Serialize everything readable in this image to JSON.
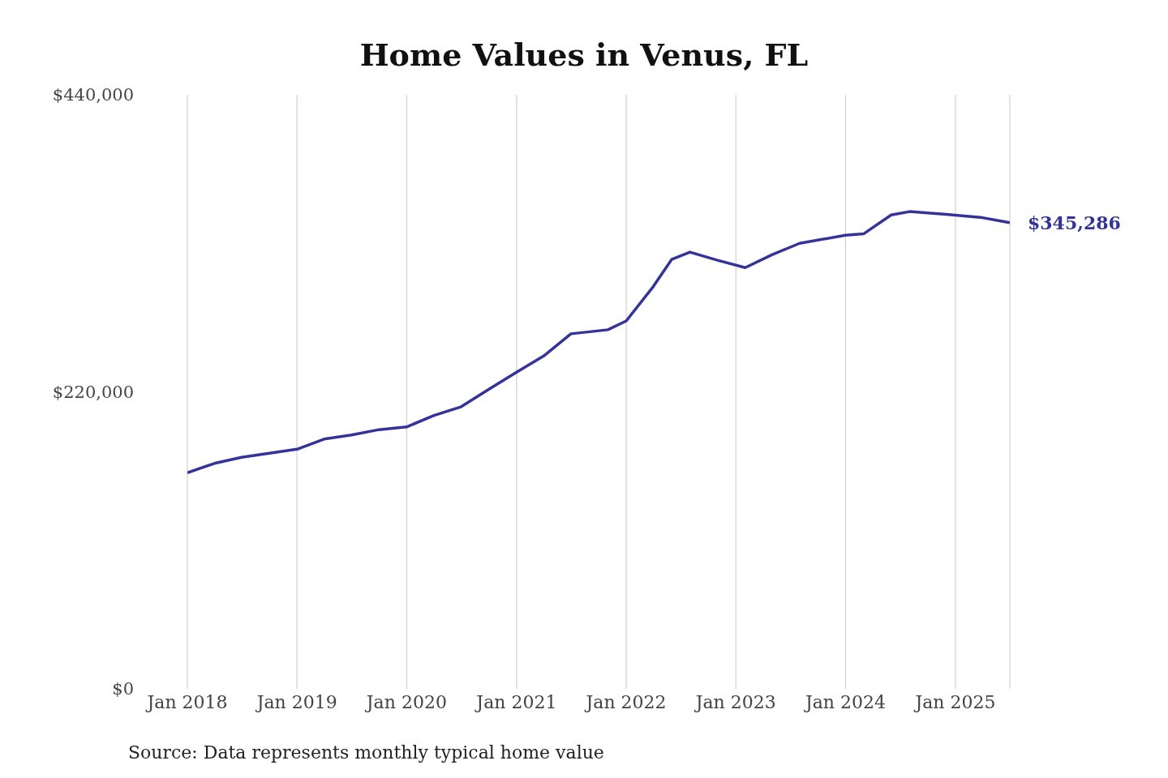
{
  "chart_data": {
    "type": "line",
    "title": "Home Values in Venus, FL",
    "x": [
      "2018-01",
      "2018-04",
      "2018-07",
      "2018-10",
      "2019-01",
      "2019-04",
      "2019-07",
      "2019-10",
      "2020-01",
      "2020-04",
      "2020-07",
      "2020-10",
      "2021-01",
      "2021-04",
      "2021-07",
      "2021-09",
      "2021-11",
      "2022-01",
      "2022-04",
      "2022-06",
      "2022-08",
      "2022-11",
      "2023-02",
      "2023-05",
      "2023-08",
      "2024-01",
      "2024-03",
      "2024-06",
      "2024-08",
      "2024-12",
      "2025-04",
      "2025-06",
      "2025-07"
    ],
    "series": [
      {
        "color": "#33339a",
        "values": [
          160000,
          167000,
          171500,
          174500,
          177500,
          185000,
          188000,
          192000,
          194000,
          202500,
          209000,
          222000,
          234500,
          246500,
          263000,
          264500,
          266000,
          272500,
          298000,
          318000,
          323500,
          317500,
          312000,
          321500,
          330000,
          336000,
          337000,
          351000,
          353500,
          351500,
          349000,
          346500,
          345286
        ]
      }
    ],
    "xlim": [
      "2018-01",
      "2025-07"
    ],
    "xticks": [
      {
        "value": "2018-01",
        "label": "Jan 2018"
      },
      {
        "value": "2019-01",
        "label": "Jan 2019"
      },
      {
        "value": "2020-01",
        "label": "Jan 2020"
      },
      {
        "value": "2021-01",
        "label": "Jan 2021"
      },
      {
        "value": "2022-01",
        "label": "Jan 2022"
      },
      {
        "value": "2023-01",
        "label": "Jan 2023"
      },
      {
        "value": "2024-01",
        "label": "Jan 2024"
      },
      {
        "value": "2025-01",
        "label": "Jan 2025"
      }
    ],
    "ylim": [
      0,
      440000
    ],
    "yticks": [
      {
        "value": 0,
        "label": "$0"
      },
      {
        "value": 220000,
        "label": "$220,000"
      },
      {
        "value": 440000,
        "label": "$440,000"
      }
    ],
    "grid": "x",
    "marker": "none",
    "line_style": "solid",
    "annotations": [
      {
        "text": "$345,286",
        "x": "2025-07",
        "y": 345286
      },
      "Source: Data represents monthly typical home value"
    ]
  }
}
